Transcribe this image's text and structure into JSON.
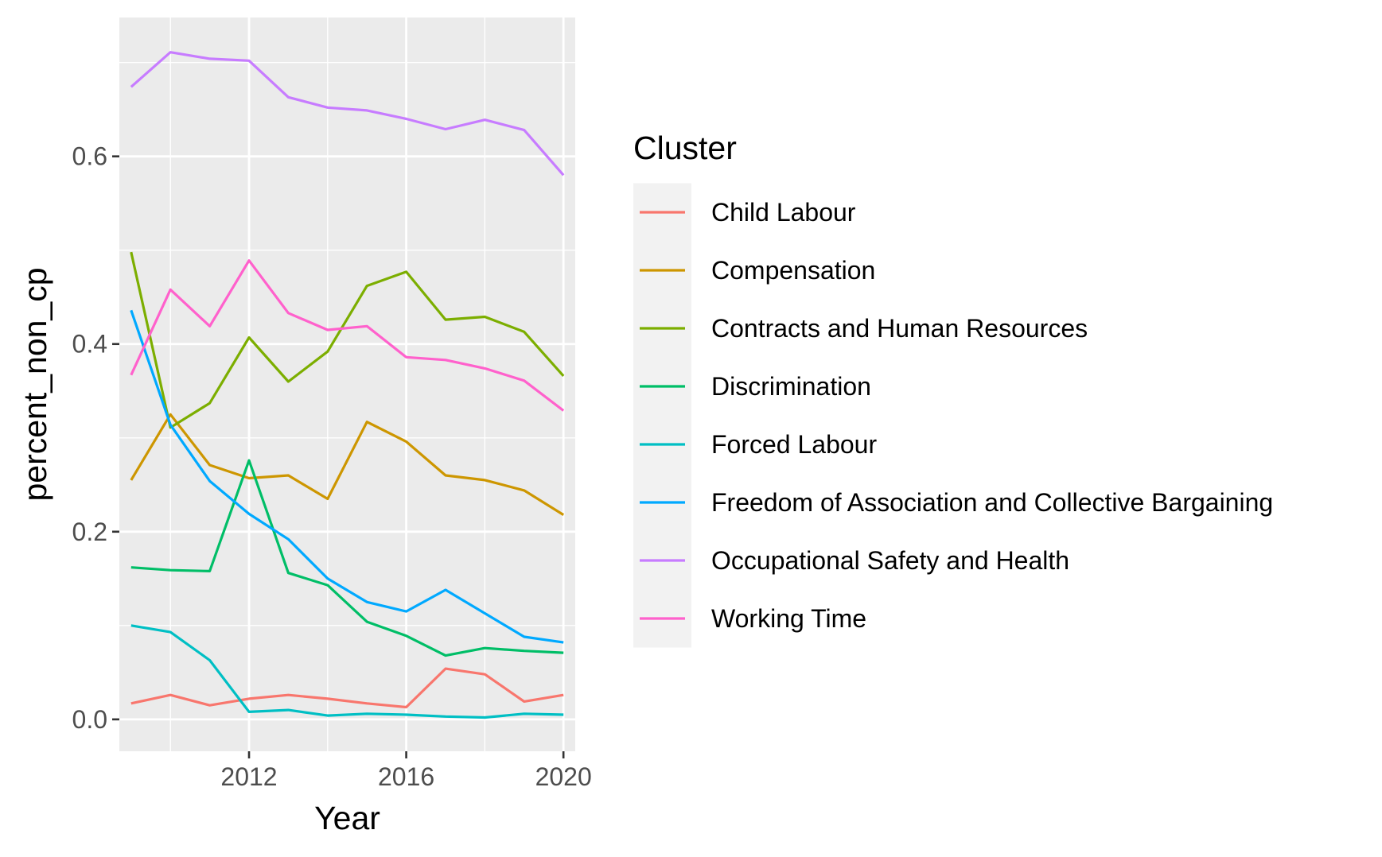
{
  "chart_data": {
    "type": "line",
    "title": "",
    "xlabel": "Year",
    "ylabel": "percent_non_cp",
    "xlim": [
      2008.7,
      2020.3
    ],
    "ylim": [
      -0.034,
      0.748
    ],
    "x_ticks": [
      2012,
      2016,
      2020
    ],
    "y_ticks": [
      0.0,
      0.2,
      0.4,
      0.6
    ],
    "x_tick_labels": [
      "2012",
      "2016",
      "2020"
    ],
    "y_tick_labels": [
      "0.0",
      "0.2",
      "0.4",
      "0.6"
    ],
    "grid": true,
    "legend": {
      "title": "Cluster",
      "position": "right"
    },
    "x": [
      2009,
      2010,
      2011,
      2012,
      2013,
      2014,
      2015,
      2016,
      2017,
      2018,
      2019,
      2020
    ],
    "series": [
      {
        "name": "Child Labour",
        "color": "#F8766D",
        "values": [
          0.017,
          0.026,
          0.015,
          0.022,
          0.026,
          0.022,
          0.017,
          0.013,
          0.054,
          0.048,
          0.019,
          0.026
        ]
      },
      {
        "name": "Compensation",
        "color": "#CD9600",
        "values": [
          0.255,
          0.325,
          0.271,
          0.257,
          0.26,
          0.235,
          0.317,
          0.296,
          0.26,
          0.255,
          0.244,
          0.218
        ]
      },
      {
        "name": "Contracts and Human Resources",
        "color": "#7CAE00",
        "values": [
          0.498,
          0.311,
          0.337,
          0.407,
          0.36,
          0.392,
          0.462,
          0.477,
          0.426,
          0.429,
          0.413,
          0.366
        ]
      },
      {
        "name": "Discrimination",
        "color": "#00BE67",
        "values": [
          0.162,
          0.159,
          0.158,
          0.276,
          0.156,
          0.143,
          0.104,
          0.089,
          0.068,
          0.076,
          0.073,
          0.071
        ]
      },
      {
        "name": "Forced Labour",
        "color": "#00BFC4",
        "values": [
          0.1,
          0.093,
          0.063,
          0.008,
          0.01,
          0.004,
          0.006,
          0.005,
          0.003,
          0.002,
          0.006,
          0.005
        ]
      },
      {
        "name": "Freedom of Association and Collective Bargaining",
        "color": "#00A9FF",
        "values": [
          0.436,
          0.314,
          0.254,
          0.219,
          0.192,
          0.15,
          0.125,
          0.115,
          0.138,
          0.113,
          0.088,
          0.082
        ]
      },
      {
        "name": "Occupational Safety and Health",
        "color": "#C77CFF",
        "values": [
          0.674,
          0.711,
          0.704,
          0.702,
          0.663,
          0.652,
          0.649,
          0.64,
          0.629,
          0.639,
          0.628,
          0.58
        ]
      },
      {
        "name": "Working Time",
        "color": "#FF61CC",
        "values": [
          0.367,
          0.458,
          0.419,
          0.489,
          0.433,
          0.415,
          0.419,
          0.386,
          0.383,
          0.374,
          0.361,
          0.329
        ]
      }
    ]
  }
}
